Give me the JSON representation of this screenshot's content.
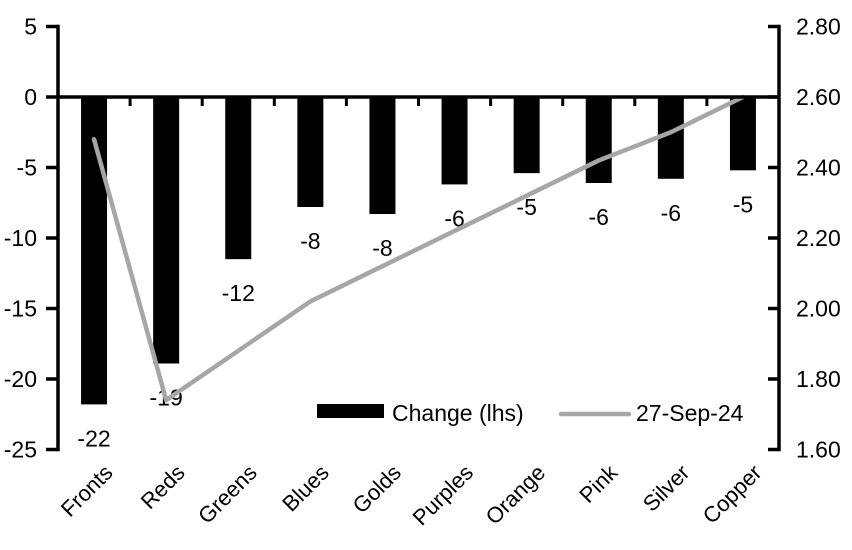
{
  "chart_data": {
    "type": "bar",
    "title": "",
    "subtitle": "",
    "categories": [
      "Fronts",
      "Reds",
      "Greens",
      "Blues",
      "Golds",
      "Purples",
      "Orange",
      "Pink",
      "Silver",
      "Copper"
    ],
    "series": [
      {
        "name": "Change (lhs)",
        "type": "bar",
        "axis": "left",
        "color": "#000000",
        "values": [
          -22,
          -19,
          -12,
          -8,
          -8,
          -6,
          -5,
          -6,
          -6,
          -5
        ],
        "bar_draw_values": [
          -21.8,
          -18.9,
          -11.5,
          -7.8,
          -8.3,
          -6.2,
          -5.4,
          -6.1,
          -5.8,
          -5.2
        ],
        "data_labels": [
          "-22",
          "-19",
          "-12",
          "-8",
          "-8",
          "-6",
          "-5",
          "-6",
          "-6",
          "-5"
        ]
      },
      {
        "name": "27-Sep-24",
        "type": "line",
        "axis": "right",
        "color": "#a6a6a6",
        "values": [
          2.48,
          1.74,
          1.88,
          2.02,
          2.12,
          2.22,
          2.32,
          2.42,
          2.5,
          2.6
        ]
      }
    ],
    "left_axis": {
      "min": -25,
      "max": 5,
      "step": 5,
      "tick_labels": [
        "5",
        "0",
        "-5",
        "-10",
        "-15",
        "-20",
        "-25"
      ]
    },
    "right_axis": {
      "min": 1.6,
      "max": 2.8,
      "step": 0.2,
      "tick_labels": [
        "2.80",
        "2.60",
        "2.40",
        "2.20",
        "2.00",
        "1.80",
        "1.60"
      ],
      "zero_alignment": "left 0 aligns with right 2.60, 5 left units per 0.20 right units"
    },
    "grid": "off",
    "legend": {
      "position": "bottom-center",
      "items": [
        {
          "label": "Change (lhs)",
          "swatch": "bar",
          "color": "#000000"
        },
        {
          "label": "27-Sep-24",
          "swatch": "line",
          "color": "#a6a6a6"
        }
      ]
    },
    "colors": {
      "bar": "#000000",
      "line": "#a6a6a6",
      "axis": "#000000",
      "text": "#000000",
      "background": "#ffffff"
    }
  }
}
